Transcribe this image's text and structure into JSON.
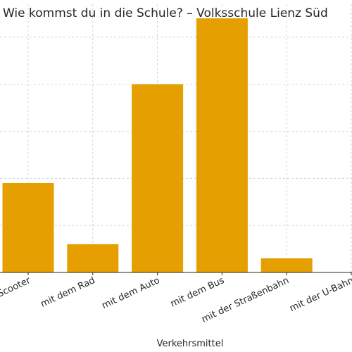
{
  "chart_data": {
    "type": "bar",
    "title": "Wie kommst du in die Schule? – Volksschule Lienz Süd",
    "xlabel": "Verkehrsmittel",
    "ylabel": "",
    "categories": [
      "mit dem Scooter",
      "mit dem Rad",
      "mit dem Auto",
      "mit dem Bus",
      "mit der Straßenbahn",
      "mit der U-Bahn"
    ],
    "values": [
      19,
      6,
      40,
      54,
      3,
      0
    ],
    "ylim": [
      0,
      57
    ],
    "grid": true,
    "bar_color": "#E69F00"
  }
}
